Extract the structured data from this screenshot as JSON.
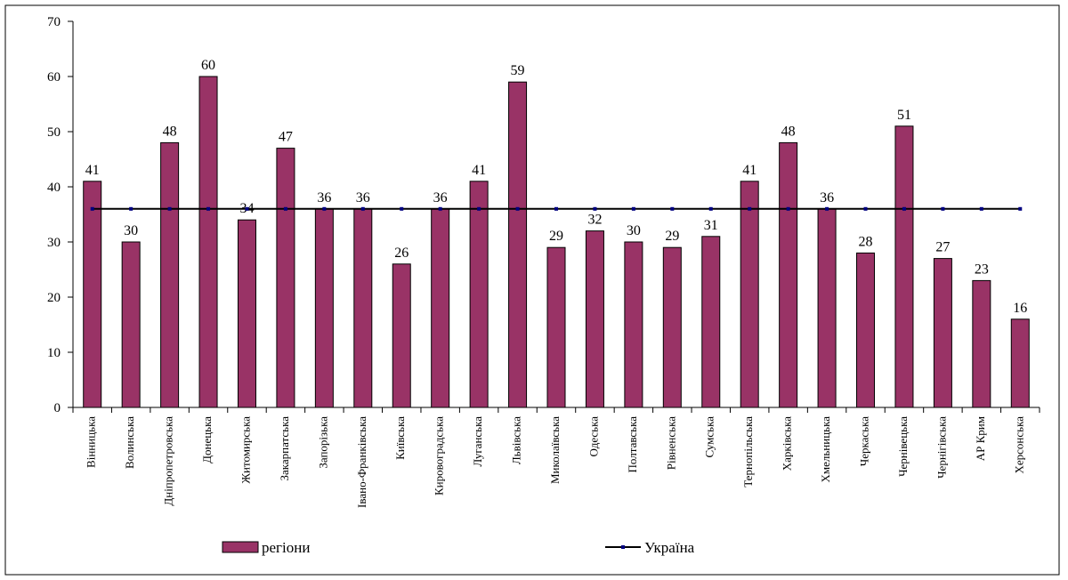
{
  "chart_data": {
    "type": "bar",
    "categories": [
      "Вінницька",
      "Волинська",
      "Дніпропетровська",
      "Донецька",
      "Житомирська",
      "Закарпатська",
      "Запорізька",
      "Івано-Франківська",
      "Київська",
      "Кировоградська",
      "Луганська",
      "Львівська",
      "Миколаївська",
      "Одеська",
      "Полтавська",
      "Рівненська",
      "Сумська",
      "Тернопільська",
      "Харківська",
      "Хмельницька",
      "Черкаська",
      "Чернівецька",
      "Чернігівська",
      "АР Крим",
      "Херсонська"
    ],
    "series": [
      {
        "name": "регіони",
        "type": "bar",
        "color": "#993366",
        "values": [
          41,
          30,
          48,
          60,
          34,
          47,
          36,
          36,
          26,
          36,
          41,
          59,
          29,
          32,
          30,
          29,
          31,
          41,
          48,
          36,
          28,
          51,
          27,
          23,
          16
        ]
      },
      {
        "name": "Україна",
        "type": "line",
        "color": "#000000",
        "marker_color": "#000080",
        "values": [
          36,
          36,
          36,
          36,
          36,
          36,
          36,
          36,
          36,
          36,
          36,
          36,
          36,
          36,
          36,
          36,
          36,
          36,
          36,
          36,
          36,
          36,
          36,
          36,
          36
        ]
      }
    ],
    "ylim": [
      0,
      70
    ],
    "yticks": [
      0,
      10,
      20,
      30,
      40,
      50,
      60,
      70
    ],
    "grid": false
  }
}
